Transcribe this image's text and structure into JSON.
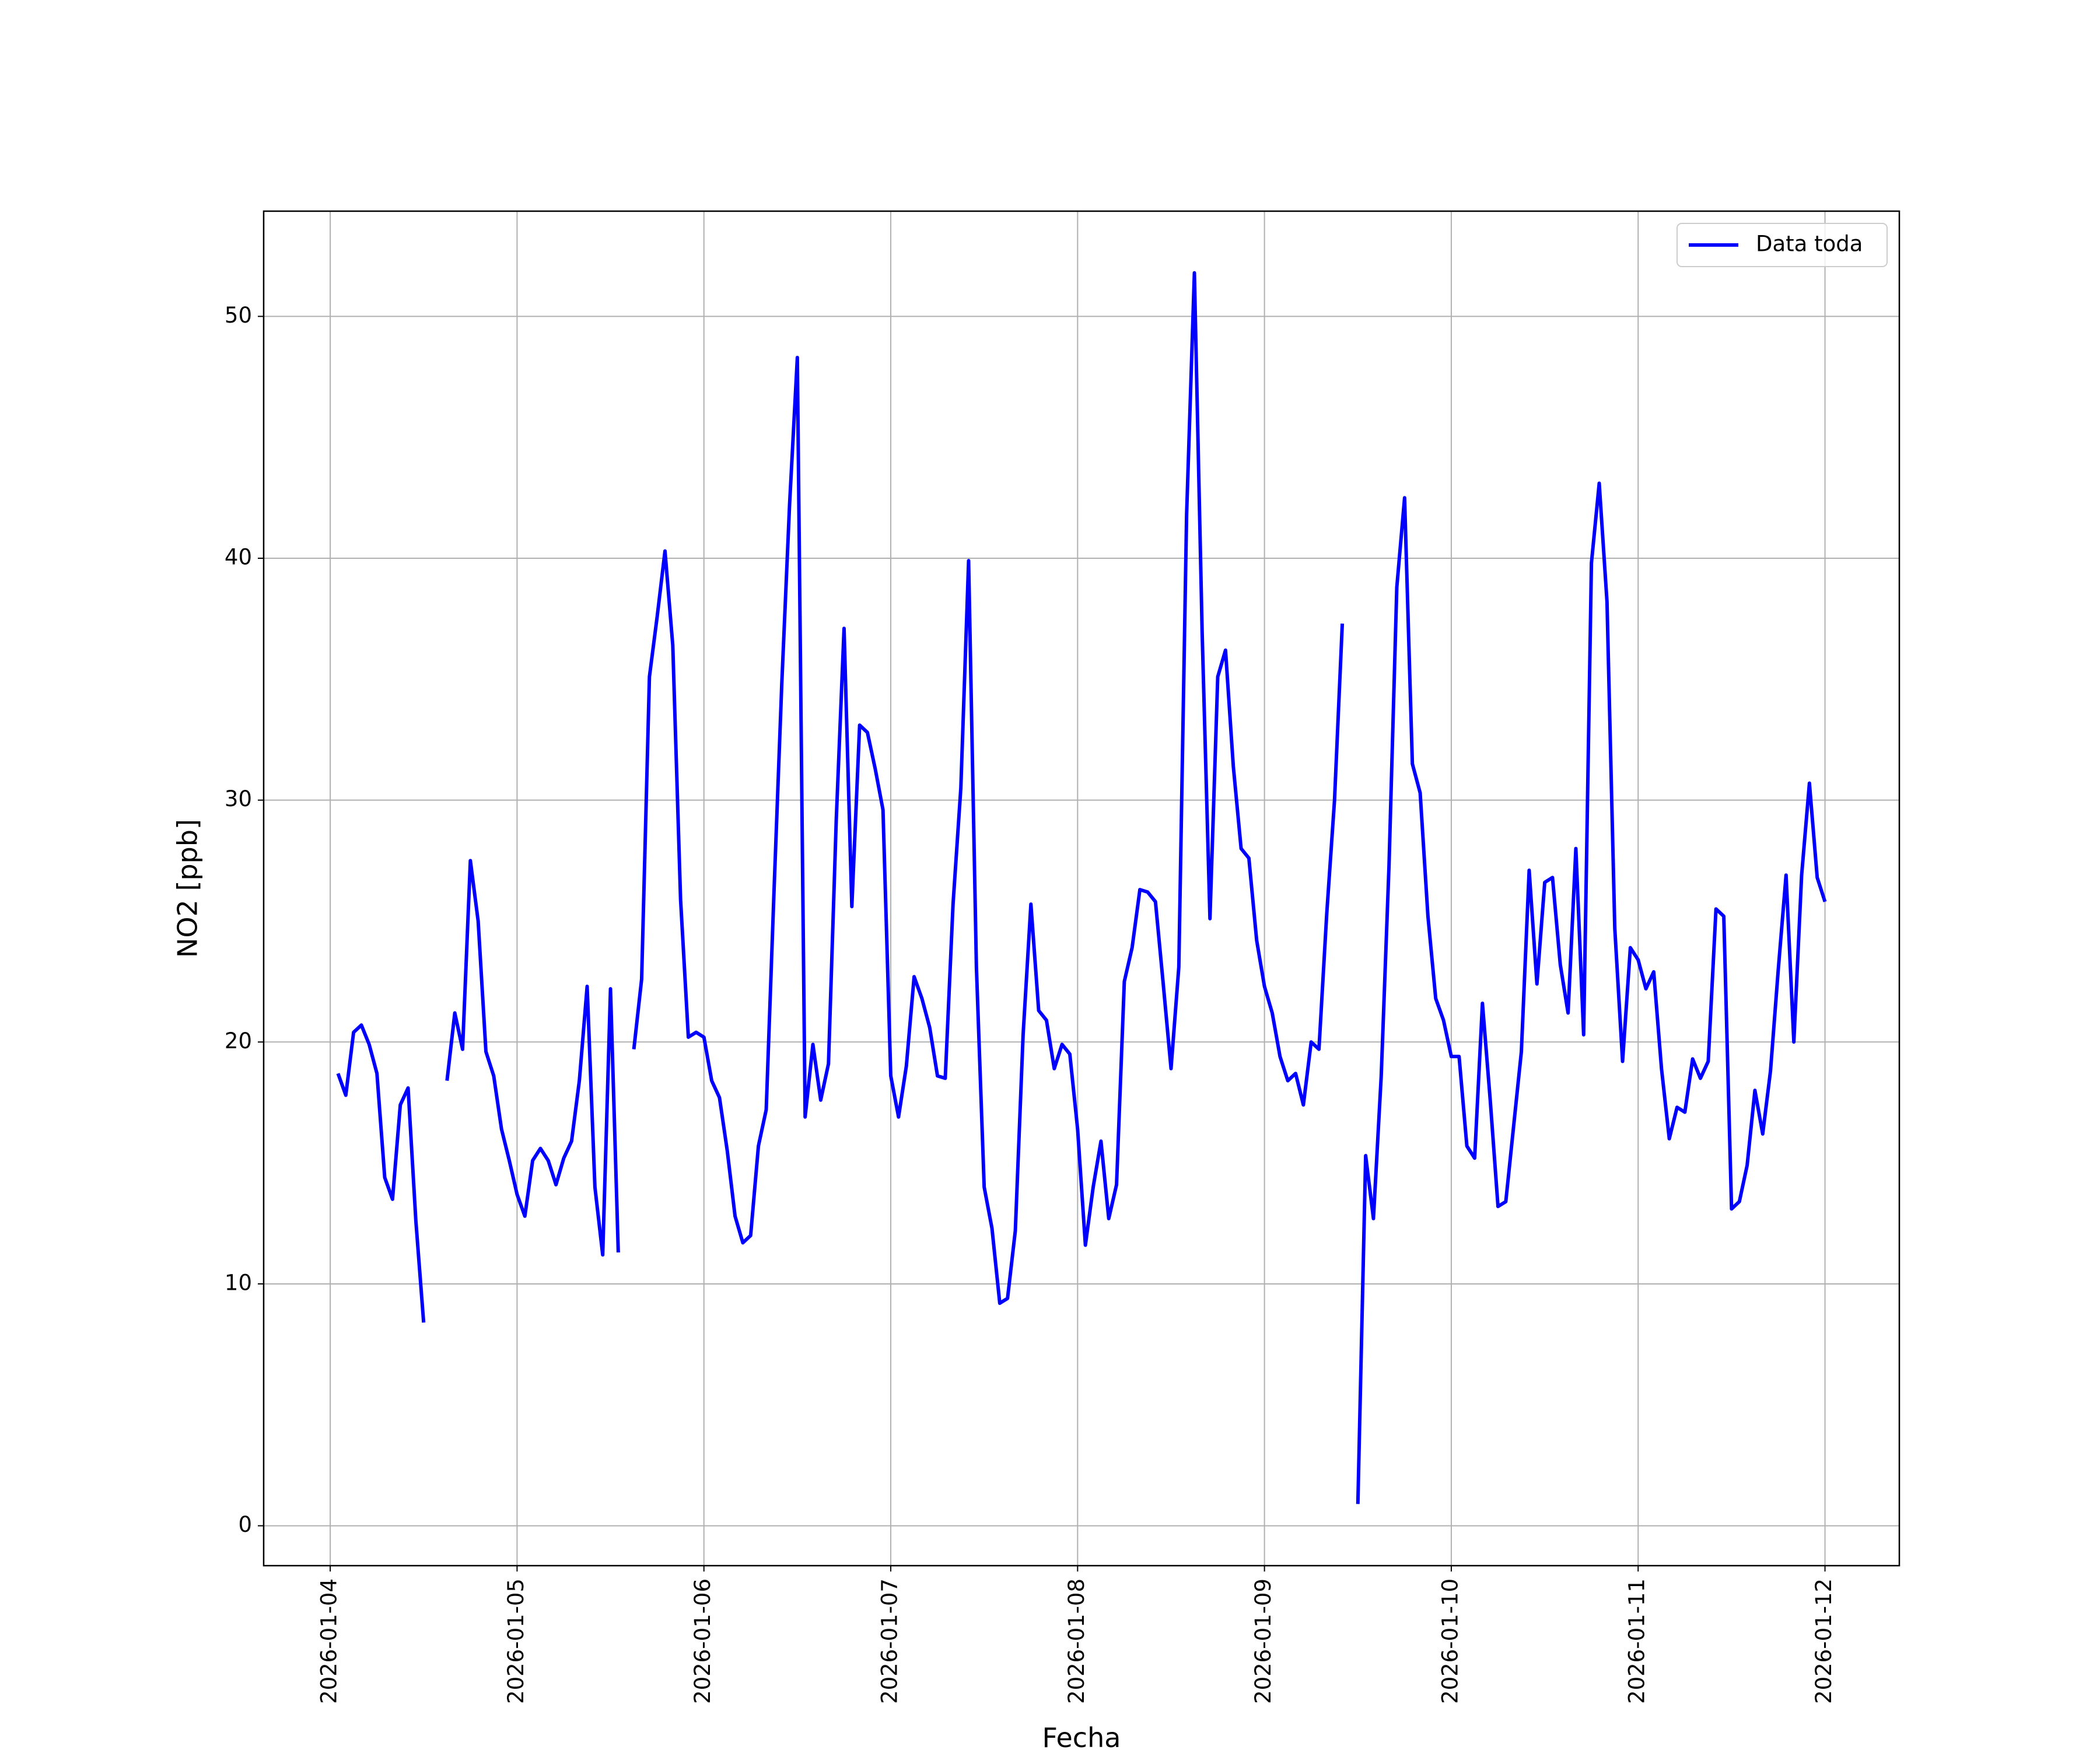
{
  "chart_data": {
    "type": "line",
    "xlabel": "Fecha",
    "ylabel": "NO2 [ppb]",
    "xlim": [
      "2026-01-03T15:27",
      "2026-01-12T09:33"
    ],
    "xticks": [
      "2026-01-04",
      "2026-01-05",
      "2026-01-06",
      "2026-01-07",
      "2026-01-08",
      "2026-01-09",
      "2026-01-10",
      "2026-01-11",
      "2026-01-12"
    ],
    "ylim": [
      -1.65,
      54.35
    ],
    "yticks": [
      0,
      10,
      20,
      30,
      40,
      50
    ],
    "grid": true,
    "legend": "upper right",
    "x": [
      "2026-01-04T01:00",
      "2026-01-04T02:00",
      "2026-01-04T03:00",
      "2026-01-04T04:00",
      "2026-01-04T05:00",
      "2026-01-04T06:00",
      "2026-01-04T07:00",
      "2026-01-04T08:00",
      "2026-01-04T09:00",
      "2026-01-04T10:00",
      "2026-01-04T11:00",
      "2026-01-04T12:00",
      "2026-01-04T13:00",
      "2026-01-04T14:00",
      "2026-01-04T15:00",
      "2026-01-04T16:00",
      "2026-01-04T17:00",
      "2026-01-04T18:00",
      "2026-01-04T19:00",
      "2026-01-04T20:00",
      "2026-01-04T21:00",
      "2026-01-04T22:00",
      "2026-01-04T23:00",
      "2026-01-05T00:00",
      "2026-01-05T01:00",
      "2026-01-05T02:00",
      "2026-01-05T03:00",
      "2026-01-05T04:00",
      "2026-01-05T05:00",
      "2026-01-05T06:00",
      "2026-01-05T07:00",
      "2026-01-05T08:00",
      "2026-01-05T09:00",
      "2026-01-05T10:00",
      "2026-01-05T11:00",
      "2026-01-05T12:00",
      "2026-01-05T13:00",
      "2026-01-05T14:00",
      "2026-01-05T15:00",
      "2026-01-05T16:00",
      "2026-01-05T17:00",
      "2026-01-05T18:00",
      "2026-01-05T19:00",
      "2026-01-05T20:00",
      "2026-01-05T21:00",
      "2026-01-05T22:00",
      "2026-01-05T23:00",
      "2026-01-06T00:00",
      "2026-01-06T01:00",
      "2026-01-06T02:00",
      "2026-01-06T03:00",
      "2026-01-06T04:00",
      "2026-01-06T05:00",
      "2026-01-06T06:00",
      "2026-01-06T07:00",
      "2026-01-06T08:00",
      "2026-01-06T09:00",
      "2026-01-06T10:00",
      "2026-01-06T11:00",
      "2026-01-06T12:00",
      "2026-01-06T13:00",
      "2026-01-06T14:00",
      "2026-01-06T15:00",
      "2026-01-06T16:00",
      "2026-01-06T17:00",
      "2026-01-06T18:00",
      "2026-01-06T19:00",
      "2026-01-06T20:00",
      "2026-01-06T21:00",
      "2026-01-06T22:00",
      "2026-01-06T23:00",
      "2026-01-07T00:00",
      "2026-01-07T01:00",
      "2026-01-07T02:00",
      "2026-01-07T03:00",
      "2026-01-07T04:00",
      "2026-01-07T05:00",
      "2026-01-07T06:00",
      "2026-01-07T07:00",
      "2026-01-07T08:00",
      "2026-01-07T09:00",
      "2026-01-07T10:00",
      "2026-01-07T11:00",
      "2026-01-07T12:00",
      "2026-01-07T13:00",
      "2026-01-07T14:00",
      "2026-01-07T15:00",
      "2026-01-07T16:00",
      "2026-01-07T17:00",
      "2026-01-07T18:00",
      "2026-01-07T19:00",
      "2026-01-07T20:00",
      "2026-01-07T21:00",
      "2026-01-07T22:00",
      "2026-01-07T23:00",
      "2026-01-08T00:00",
      "2026-01-08T01:00",
      "2026-01-08T02:00",
      "2026-01-08T03:00",
      "2026-01-08T04:00",
      "2026-01-08T05:00",
      "2026-01-08T06:00",
      "2026-01-08T07:00",
      "2026-01-08T08:00",
      "2026-01-08T09:00",
      "2026-01-08T10:00",
      "2026-01-08T11:00",
      "2026-01-08T12:00",
      "2026-01-08T13:00",
      "2026-01-08T14:00",
      "2026-01-08T15:00",
      "2026-01-08T16:00",
      "2026-01-08T17:00",
      "2026-01-08T18:00",
      "2026-01-08T19:00",
      "2026-01-08T20:00",
      "2026-01-08T21:00",
      "2026-01-08T22:00",
      "2026-01-08T23:00",
      "2026-01-09T00:00",
      "2026-01-09T01:00",
      "2026-01-09T02:00",
      "2026-01-09T03:00",
      "2026-01-09T04:00",
      "2026-01-09T05:00",
      "2026-01-09T06:00",
      "2026-01-09T07:00",
      "2026-01-09T08:00",
      "2026-01-09T09:00",
      "2026-01-09T10:00",
      "2026-01-09T11:00",
      "2026-01-09T12:00",
      "2026-01-09T13:00",
      "2026-01-09T14:00",
      "2026-01-09T15:00",
      "2026-01-09T16:00",
      "2026-01-09T17:00",
      "2026-01-09T18:00",
      "2026-01-09T19:00",
      "2026-01-09T20:00",
      "2026-01-09T21:00",
      "2026-01-09T22:00",
      "2026-01-09T23:00",
      "2026-01-10T00:00",
      "2026-01-10T01:00",
      "2026-01-10T02:00",
      "2026-01-10T03:00",
      "2026-01-10T04:00",
      "2026-01-10T05:00",
      "2026-01-10T06:00",
      "2026-01-10T07:00",
      "2026-01-10T08:00",
      "2026-01-10T09:00",
      "2026-01-10T10:00",
      "2026-01-10T11:00",
      "2026-01-10T12:00",
      "2026-01-10T13:00",
      "2026-01-10T14:00",
      "2026-01-10T15:00",
      "2026-01-10T16:00",
      "2026-01-10T17:00",
      "2026-01-10T18:00",
      "2026-01-10T19:00",
      "2026-01-10T20:00",
      "2026-01-10T21:00",
      "2026-01-10T22:00",
      "2026-01-10T23:00",
      "2026-01-11T00:00",
      "2026-01-11T01:00",
      "2026-01-11T02:00",
      "2026-01-11T03:00",
      "2026-01-11T04:00",
      "2026-01-11T05:00",
      "2026-01-11T06:00",
      "2026-01-11T07:00",
      "2026-01-11T08:00",
      "2026-01-11T09:00",
      "2026-01-11T10:00",
      "2026-01-11T11:00",
      "2026-01-11T12:00",
      "2026-01-11T13:00",
      "2026-01-11T14:00",
      "2026-01-11T15:00",
      "2026-01-11T16:00",
      "2026-01-11T17:00",
      "2026-01-11T18:00",
      "2026-01-11T19:00",
      "2026-01-11T20:00",
      "2026-01-11T21:00",
      "2026-01-11T22:00",
      "2026-01-11T23:00",
      "2026-01-12T00:00"
    ],
    "series": [
      {
        "name": "Data toda",
        "color": "#0000ff",
        "values": [
          18.7,
          17.8,
          20.4,
          20.7,
          19.9,
          18.7,
          14.4,
          13.5,
          17.4,
          18.1,
          12.6,
          8.4,
          null,
          null,
          18.4,
          21.2,
          19.7,
          27.5,
          25.0,
          19.6,
          18.6,
          16.4,
          15.1,
          13.7,
          12.8,
          15.1,
          15.6,
          15.1,
          14.1,
          15.2,
          15.9,
          18.4,
          22.3,
          14.0,
          11.2,
          22.2,
          11.3,
          null,
          19.7,
          22.6,
          35.1,
          37.6,
          40.3,
          36.4,
          25.9,
          20.2,
          20.4,
          20.2,
          18.4,
          17.7,
          15.5,
          12.8,
          11.7,
          12.0,
          15.7,
          17.2,
          26.2,
          34.8,
          42.2,
          48.3,
          16.9,
          19.9,
          17.6,
          19.1,
          29.2,
          37.1,
          25.6,
          33.1,
          32.8,
          31.3,
          29.6,
          18.6,
          16.9,
          19.0,
          22.7,
          21.8,
          20.6,
          18.6,
          18.5,
          25.7,
          30.5,
          39.9,
          23.1,
          14.0,
          12.3,
          9.2,
          9.4,
          12.2,
          20.3,
          25.7,
          21.3,
          20.9,
          18.9,
          19.9,
          19.5,
          16.4,
          11.6,
          14.0,
          15.9,
          12.7,
          14.1,
          22.5,
          23.9,
          26.3,
          26.2,
          25.8,
          22.4,
          18.9,
          23.1,
          41.8,
          51.8,
          36.9,
          25.1,
          35.1,
          36.2,
          31.4,
          28.0,
          27.6,
          24.2,
          22.3,
          21.2,
          19.4,
          18.4,
          18.7,
          17.4,
          20.0,
          19.7,
          25.3,
          30.0,
          37.3,
          null,
          0.9,
          15.3,
          12.7,
          18.6,
          27.3,
          38.8,
          42.5,
          31.5,
          30.3,
          25.2,
          21.8,
          20.9,
          19.4,
          19.4,
          15.7,
          15.2,
          21.6,
          17.6,
          13.2,
          13.4,
          16.5,
          19.6,
          27.1,
          22.4,
          26.6,
          26.8,
          23.2,
          21.2,
          28.0,
          20.3,
          39.8,
          43.1,
          38.2,
          24.7,
          19.2,
          23.9,
          23.4,
          22.2,
          22.9,
          18.9,
          16.0,
          17.3,
          17.1,
          19.3,
          18.5,
          19.2,
          25.5,
          25.2,
          13.1,
          13.4,
          14.9,
          18.0,
          16.2,
          18.8,
          23.0,
          26.9,
          20.0,
          26.9,
          30.7,
          26.8,
          25.8
        ]
      }
    ]
  }
}
